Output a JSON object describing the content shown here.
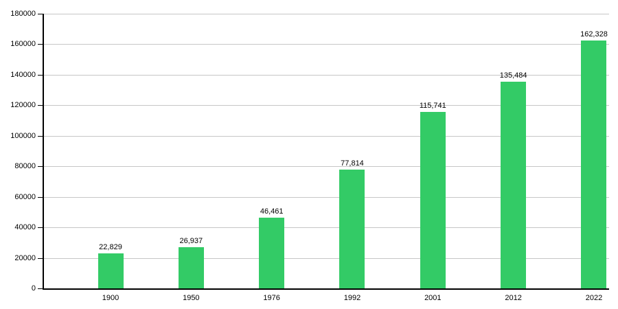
{
  "chart_data": {
    "type": "bar",
    "title": "",
    "xlabel": "",
    "ylabel": "",
    "categories": [
      "1900",
      "1950",
      "1976",
      "1992",
      "2001",
      "2012",
      "2022"
    ],
    "values": [
      22829,
      26937,
      46461,
      77814,
      115741,
      135484,
      162328
    ],
    "value_labels": [
      "22,829",
      "26,937",
      "46,461",
      "77,814",
      "115,741",
      "135,484",
      "162,328"
    ],
    "ylim": [
      0,
      180000
    ],
    "yticks": [
      0,
      20000,
      40000,
      60000,
      80000,
      100000,
      120000,
      140000,
      160000,
      180000
    ],
    "ytick_labels": [
      "0",
      "20000",
      "40000",
      "60000",
      "80000",
      "100000",
      "120000",
      "140000",
      "160000",
      "180000"
    ],
    "grid": "horizontal",
    "legend": "none",
    "colors": {
      "bar_fill": "#33cb66",
      "axis": "#000000",
      "gridline": "#c6c6c6",
      "text": "#000000",
      "background": "#ffffff"
    }
  }
}
